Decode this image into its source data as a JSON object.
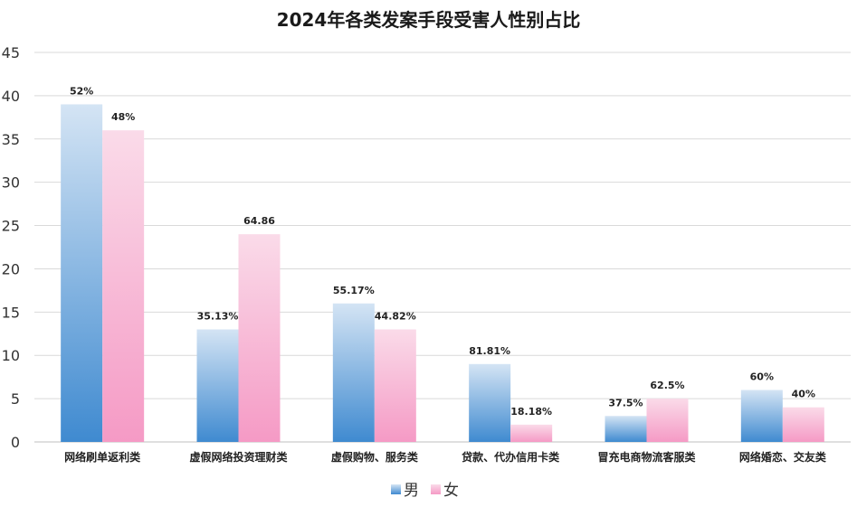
{
  "chart_data": {
    "type": "bar",
    "title": "2024年各类发案手段受害人性别占比",
    "xlabel": "",
    "ylabel": "",
    "ylim": [
      0,
      45
    ],
    "yticks": [
      0,
      5,
      10,
      15,
      20,
      25,
      30,
      35,
      40,
      45
    ],
    "grid": true,
    "legend_position": "bottom",
    "categories": [
      "网络刷单返利类",
      "虚假网络投资理财类",
      "虚假购物、服务类",
      "贷款、代办信用卡类",
      "冒充电商物流客服类",
      "网络婚恋、交友类"
    ],
    "series": [
      {
        "name": "男",
        "color": "#3f8ad0",
        "values": [
          39,
          13,
          16,
          9,
          3,
          6
        ],
        "labels": [
          "52%",
          "35.13%",
          "55.17%",
          "81.81%",
          "37.5%",
          "60%"
        ]
      },
      {
        "name": "女",
        "color": "#f59ac5",
        "values": [
          36,
          24,
          13,
          2,
          5,
          4
        ],
        "labels": [
          "48%",
          "64.86",
          "44.82%",
          "18.18%",
          "62.5%",
          "40%"
        ]
      }
    ]
  }
}
